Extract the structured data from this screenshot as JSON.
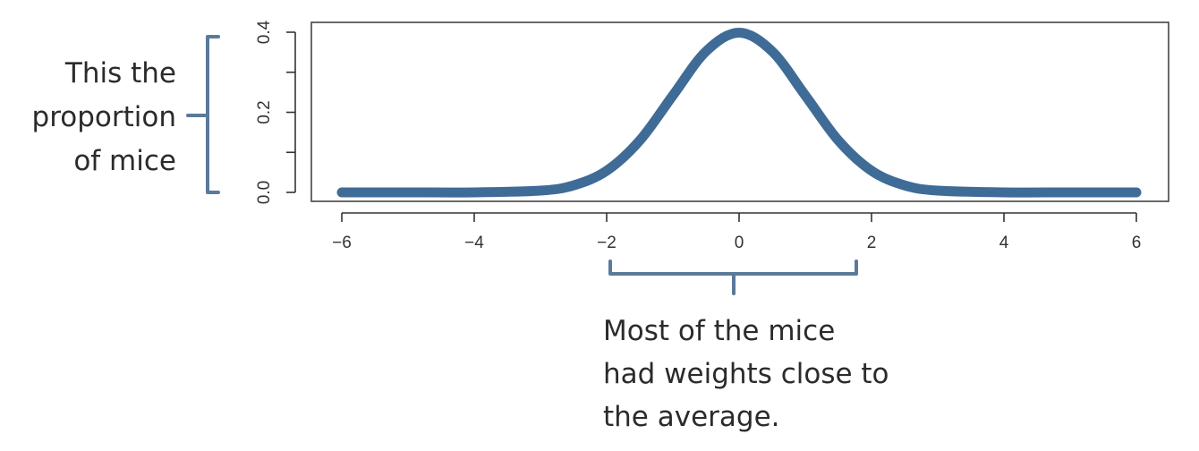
{
  "colors": {
    "curve": "#3f6b97",
    "brace": "#5b7a9a",
    "axis": "#333333",
    "text": "#2b2b2b"
  },
  "chart_data": {
    "type": "line",
    "title": "",
    "xlabel": "",
    "ylabel": "",
    "xlim": [
      -6,
      6
    ],
    "ylim": [
      0,
      0.4
    ],
    "x_ticks": [
      "-6",
      "-4",
      "-2",
      "0",
      "2",
      "4",
      "6"
    ],
    "y_ticks": [
      "0.0",
      "0.2",
      "0.4"
    ],
    "y_tick_values": [
      0,
      0.1,
      0.2,
      0.3,
      0.4
    ],
    "grid": false,
    "legend": "none",
    "curve": "normal density, mean 0, sd 1",
    "series": [
      {
        "x": [
          -6,
          -5,
          -4,
          -3,
          -2.5,
          -2,
          -1.5,
          -1,
          -0.5,
          0,
          0.5,
          1,
          1.5,
          2,
          2.5,
          3,
          4,
          5,
          6
        ],
        "values": [
          0.0,
          0.0,
          0.0001,
          0.0044,
          0.0175,
          0.054,
          0.1295,
          0.242,
          0.3521,
          0.3989,
          0.3521,
          0.242,
          0.1295,
          0.054,
          0.0175,
          0.0044,
          0.0001,
          0.0,
          0.0
        ]
      }
    ]
  },
  "annotations": {
    "y_label_lines": [
      "This the",
      "proportion",
      "of mice"
    ],
    "x_note_lines": [
      "Most of the mice",
      "had weights close to",
      "the average."
    ]
  }
}
